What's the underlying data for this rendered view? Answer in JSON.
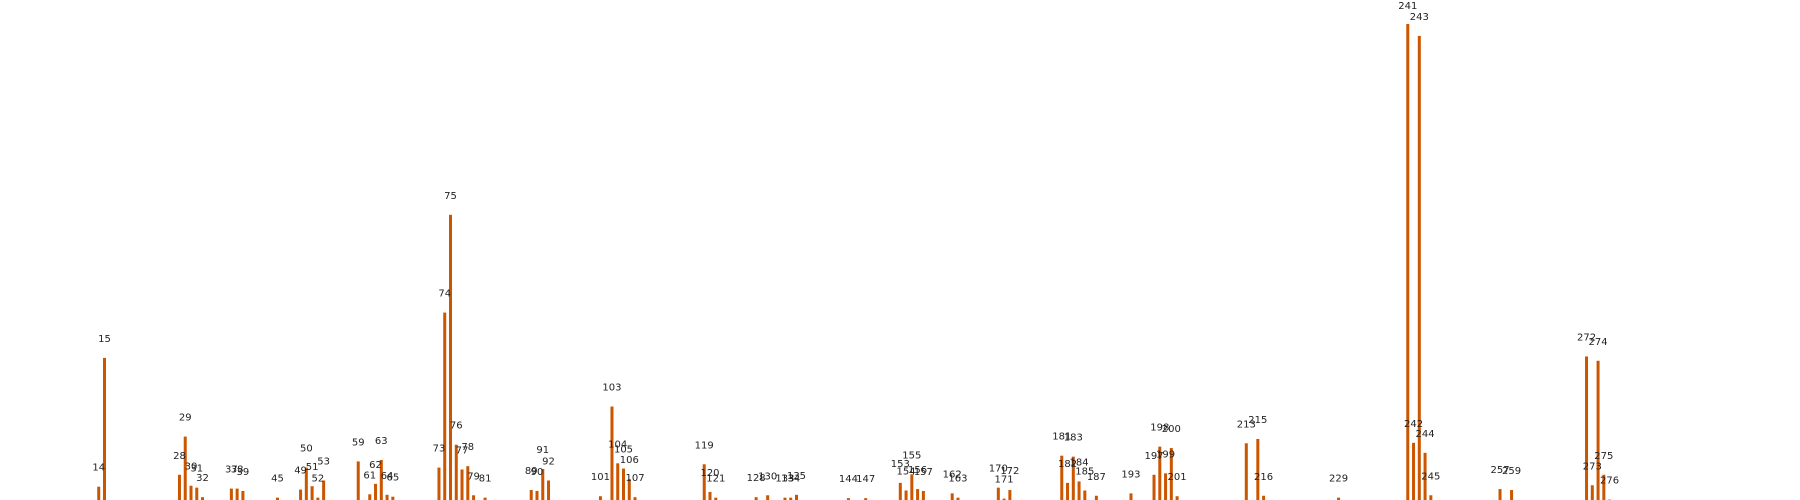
{
  "chart_data": {
    "type": "bar",
    "grid": false,
    "legend": "none",
    "color": "#cc5500",
    "xlim": [
      0,
      300
    ],
    "ylim": [
      0,
      100
    ],
    "points": [
      {
        "x": 14,
        "label": "14",
        "value": 3
      },
      {
        "x": 15,
        "label": "15",
        "value": 30
      },
      {
        "x": 28,
        "label": "28",
        "value": 5.5
      },
      {
        "x": 29,
        "label": "29",
        "value": 13.5
      },
      {
        "x": 30,
        "label": "30",
        "value": 3.2
      },
      {
        "x": 31,
        "label": "31",
        "value": 2.8
      },
      {
        "x": 32,
        "label": "32",
        "value": 0.8
      },
      {
        "x": 37,
        "label": "37",
        "value": 2.6
      },
      {
        "x": 38,
        "label": "38",
        "value": 2.6
      },
      {
        "x": 39,
        "label": "39",
        "value": 2.1
      },
      {
        "x": 45,
        "label": "45",
        "value": 0.7
      },
      {
        "x": 49,
        "label": "49",
        "value": 2.4
      },
      {
        "x": 50,
        "label": "50",
        "value": 7
      },
      {
        "x": 51,
        "label": "51",
        "value": 3.1
      },
      {
        "x": 52,
        "label": "52",
        "value": 0.7
      },
      {
        "x": 53,
        "label": "53",
        "value": 4.3
      },
      {
        "x": 59,
        "label": "59",
        "value": 8.3
      },
      {
        "x": 61,
        "label": "61",
        "value": 1.4
      },
      {
        "x": 62,
        "label": "62",
        "value": 3.6
      },
      {
        "x": 63,
        "label": "63",
        "value": 8.6
      },
      {
        "x": 64,
        "label": "64",
        "value": 1.3
      },
      {
        "x": 65,
        "label": "65",
        "value": 0.9
      },
      {
        "x": 73,
        "label": "73",
        "value": 7
      },
      {
        "x": 74,
        "label": "74",
        "value": 39.5
      },
      {
        "x": 75,
        "label": "75",
        "value": 60
      },
      {
        "x": 76,
        "label": "76",
        "value": 11.8
      },
      {
        "x": 77,
        "label": "77",
        "value": 6.6
      },
      {
        "x": 78,
        "label": "78",
        "value": 7.3
      },
      {
        "x": 79,
        "label": "79",
        "value": 1.2
      },
      {
        "x": 81,
        "label": "81",
        "value": 0.7
      },
      {
        "x": 89,
        "label": "89",
        "value": 2.3
      },
      {
        "x": 90,
        "label": "90",
        "value": 2.1
      },
      {
        "x": 91,
        "label": "91",
        "value": 6.7
      },
      {
        "x": 92,
        "label": "92",
        "value": 4.3
      },
      {
        "x": 101,
        "label": "101",
        "value": 1
      },
      {
        "x": 103,
        "label": "103",
        "value": 19.8
      },
      {
        "x": 104,
        "label": "104",
        "value": 7.9
      },
      {
        "x": 105,
        "label": "105",
        "value": 6.8
      },
      {
        "x": 106,
        "label": "106",
        "value": 4.6
      },
      {
        "x": 107,
        "label": "107",
        "value": 0.8
      },
      {
        "x": 119,
        "label": "119",
        "value": 7.7
      },
      {
        "x": 120,
        "label": "120",
        "value": 1.9
      },
      {
        "x": 121,
        "label": "121",
        "value": 0.7
      },
      {
        "x": 128,
        "label": "128",
        "value": 0.8
      },
      {
        "x": 130,
        "label": "130",
        "value": 1.2
      },
      {
        "x": 133,
        "label": "133",
        "value": 0.7
      },
      {
        "x": 134,
        "label": "134",
        "value": 0.7
      },
      {
        "x": 135,
        "label": "135",
        "value": 1.3
      },
      {
        "x": 144,
        "label": "144",
        "value": 0.6
      },
      {
        "x": 147,
        "label": "147",
        "value": 0.6
      },
      {
        "x": 153,
        "label": "153",
        "value": 3.8
      },
      {
        "x": 154,
        "label": "154",
        "value": 2.2
      },
      {
        "x": 155,
        "label": "155",
        "value": 5.6
      },
      {
        "x": 156,
        "label": "156",
        "value": 2.5
      },
      {
        "x": 157,
        "label": "157",
        "value": 2.1
      },
      {
        "x": 162,
        "label": "162",
        "value": 1.6
      },
      {
        "x": 163,
        "label": "163",
        "value": 0.7
      },
      {
        "x": 170,
        "label": "170",
        "value": 2.8
      },
      {
        "x": 171,
        "label": "171",
        "value": 0.5
      },
      {
        "x": 172,
        "label": "172",
        "value": 2.3
      },
      {
        "x": 181,
        "label": "181",
        "value": 9.5
      },
      {
        "x": 182,
        "label": "182",
        "value": 3.8
      },
      {
        "x": 183,
        "label": "183",
        "value": 9.3
      },
      {
        "x": 184,
        "label": "184",
        "value": 4.1
      },
      {
        "x": 185,
        "label": "185",
        "value": 2.2
      },
      {
        "x": 187,
        "label": "187",
        "value": 1.1
      },
      {
        "x": 193,
        "label": "193",
        "value": 1.6
      },
      {
        "x": 197,
        "label": "197",
        "value": 5.5
      },
      {
        "x": 198,
        "label": "198",
        "value": 11.4
      },
      {
        "x": 199,
        "label": "199",
        "value": 5.8
      },
      {
        "x": 200,
        "label": "200",
        "value": 11.1
      },
      {
        "x": 201,
        "label": "201",
        "value": 1
      },
      {
        "x": 213,
        "label": "213",
        "value": 12.1
      },
      {
        "x": 215,
        "label": "215",
        "value": 13
      },
      {
        "x": 216,
        "label": "216",
        "value": 1.1
      },
      {
        "x": 229,
        "label": "229",
        "value": 0.7
      },
      {
        "x": 241,
        "label": "241",
        "value": 100
      },
      {
        "x": 242,
        "label": "242",
        "value": 12.2
      },
      {
        "x": 243,
        "label": "243",
        "value": 97.5
      },
      {
        "x": 244,
        "label": "244",
        "value": 10.1
      },
      {
        "x": 245,
        "label": "245",
        "value": 1.2
      },
      {
        "x": 257,
        "label": "257",
        "value": 2.5
      },
      {
        "x": 259,
        "label": "259",
        "value": 2.3
      },
      {
        "x": 272,
        "label": "272",
        "value": 30.3
      },
      {
        "x": 273,
        "label": "273",
        "value": 3.3
      },
      {
        "x": 274,
        "label": "274",
        "value": 29.4
      },
      {
        "x": 275,
        "label": "275",
        "value": 5.5
      },
      {
        "x": 276,
        "label": "276",
        "value": 0.3
      }
    ]
  }
}
